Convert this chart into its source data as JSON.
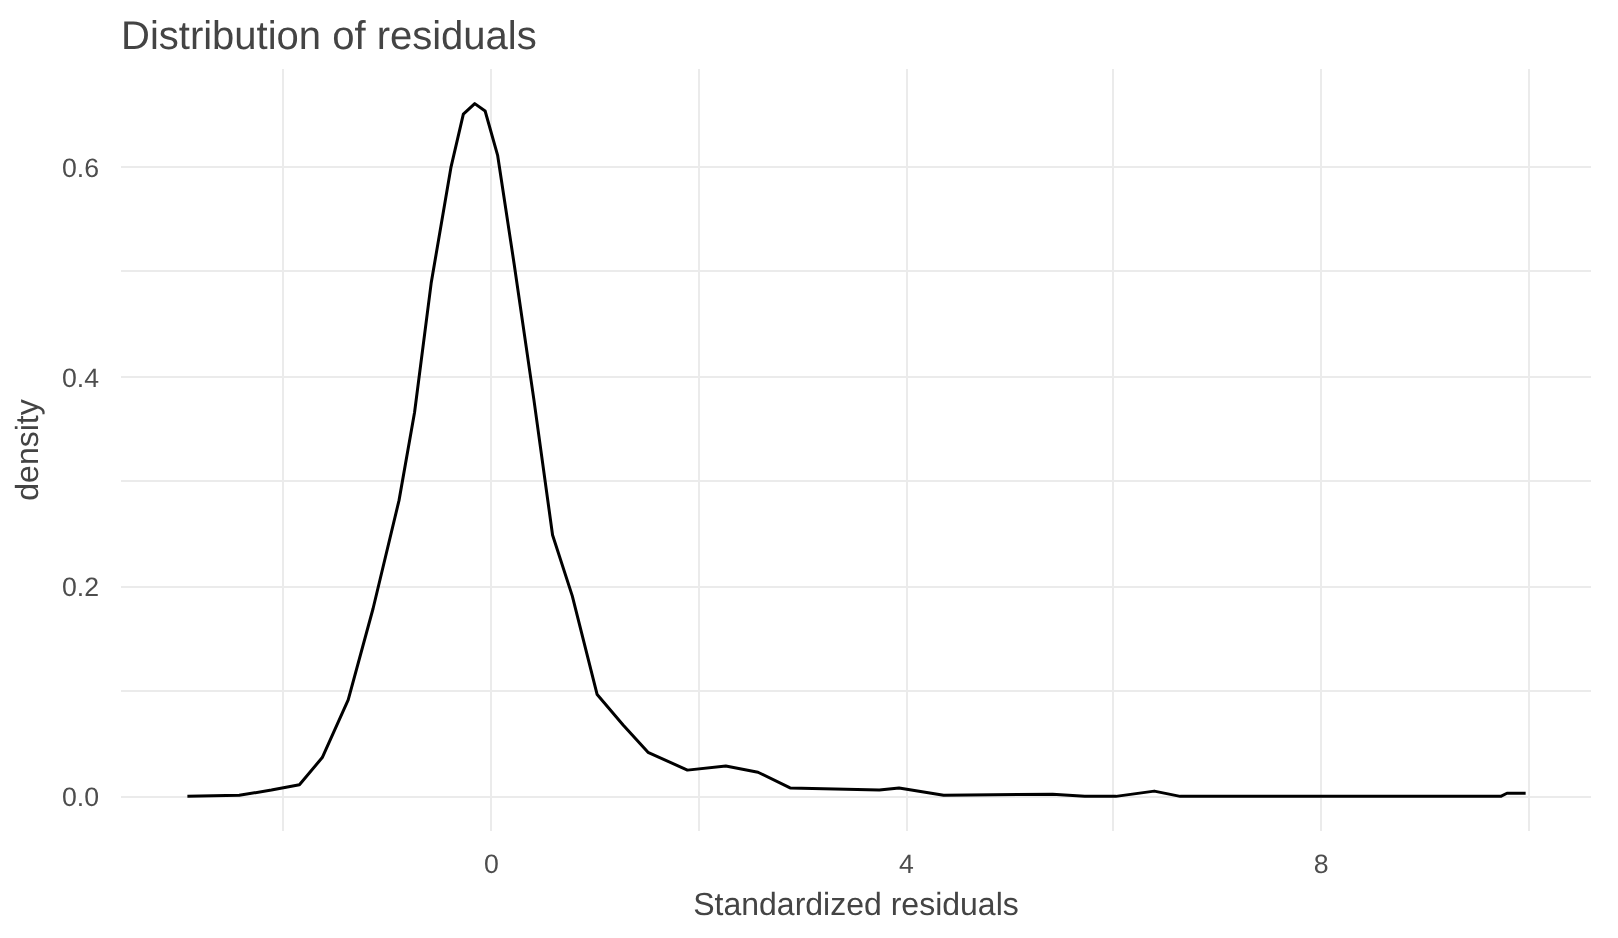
{
  "chart_data": {
    "type": "line",
    "title": "Distribution of residuals",
    "xlabel": "Standardized residuals",
    "ylabel": "density",
    "xlim": [
      -3.57,
      10.6
    ],
    "ylim": [
      -0.033,
      0.693
    ],
    "xticks": [
      {
        "value": -2,
        "label": null
      },
      0,
      {
        "value": 2,
        "label": null
      },
      4,
      {
        "value": 6,
        "label": null
      },
      8,
      {
        "value": 10,
        "label": null
      }
    ],
    "yticks": [
      {
        "value": 0,
        "label": "0.0"
      },
      {
        "value": 0.1,
        "label": null
      },
      {
        "value": 0.2,
        "label": "0.2"
      },
      {
        "value": 0.3,
        "label": null
      },
      {
        "value": 0.4,
        "label": "0.4"
      },
      {
        "value": 0.5,
        "label": null
      },
      {
        "value": 0.6,
        "label": "0.6"
      }
    ],
    "grid": true,
    "marker": "none",
    "line_style": "solid",
    "series": [
      {
        "color": "#000000",
        "x": [
          -2.93,
          -2.43,
          -2.12,
          -1.85,
          -1.63,
          -1.38,
          -1.14,
          -0.89,
          -0.74,
          -0.58,
          -0.39,
          -0.27,
          -0.16,
          -0.06,
          0.06,
          0.22,
          0.41,
          0.59,
          0.78,
          1.02,
          1.27,
          1.51,
          1.89,
          2.26,
          2.57,
          2.88,
          3.74,
          3.93,
          4.36,
          5.41,
          5.72,
          6.02,
          6.39,
          6.64,
          9.73,
          9.79,
          9.97
        ],
        "values": [
          0.0,
          0.001,
          0.006,
          0.011,
          0.037,
          0.092,
          0.179,
          0.282,
          0.366,
          0.489,
          0.599,
          0.65,
          0.66,
          0.653,
          0.611,
          0.507,
          0.378,
          0.249,
          0.191,
          0.097,
          0.068,
          0.042,
          0.025,
          0.029,
          0.023,
          0.008,
          0.006,
          0.008,
          0.001,
          0.002,
          0.0,
          0.0,
          0.005,
          0.0,
          0.0,
          0.003,
          0.003
        ]
      }
    ]
  }
}
